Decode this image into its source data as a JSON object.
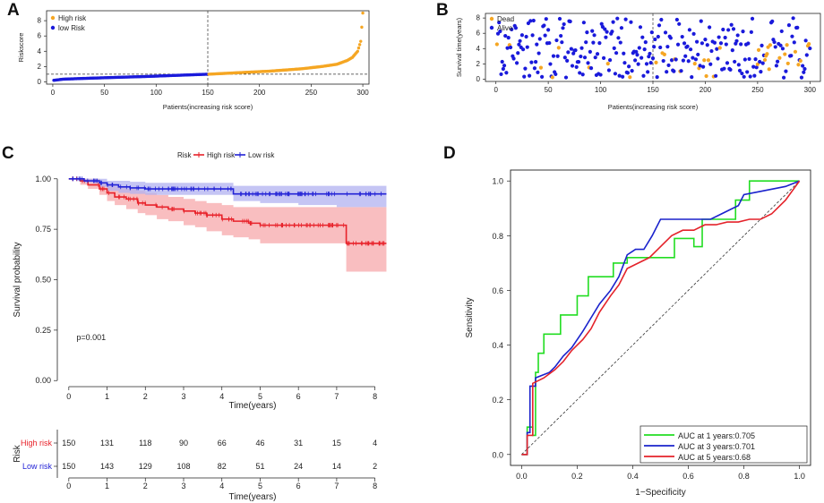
{
  "panels": {
    "A": "A",
    "B": "B",
    "C": "C",
    "D": "D"
  },
  "colors": {
    "high": "#f5a623",
    "low": "#1a1adb",
    "km_high": "#e8222a",
    "km_low": "#2323d6",
    "km_high_ci": "#f7a8ab",
    "km_low_ci": "#b2b2f0",
    "roc1": "#22dd22",
    "roc3": "#1a22cc",
    "roc5": "#e4222a"
  },
  "chart_data": [
    {
      "id": "A",
      "type": "scatter",
      "title": "",
      "xlabel": "Patients(increasing risk score)",
      "ylabel": "Riskscore",
      "xlim": [
        0,
        300
      ],
      "ylim": [
        0,
        9
      ],
      "xticks": [
        "0",
        "50",
        "100",
        "150",
        "200",
        "250",
        "300"
      ],
      "yticks": [
        "0",
        "2",
        "4",
        "6",
        "8"
      ],
      "legend": [
        "High risk",
        "low Risk"
      ],
      "cutoff_x": 150,
      "cutoff_y": 1.0,
      "low_curve": {
        "x": [
          1,
          10,
          30,
          60,
          90,
          120,
          150
        ],
        "y": [
          0.2,
          0.35,
          0.45,
          0.58,
          0.7,
          0.85,
          1.0
        ]
      },
      "high_curve": {
        "x": [
          151,
          180,
          210,
          240,
          260,
          275,
          285,
          290,
          295,
          298,
          300
        ],
        "y": [
          1.0,
          1.2,
          1.4,
          1.7,
          2.0,
          2.3,
          2.8,
          3.2,
          4.0,
          5.3,
          9.0
        ]
      }
    },
    {
      "id": "B",
      "type": "scatter",
      "xlabel": "Patients(increasing risk score)",
      "ylabel": "Survival time(years)",
      "xlim": [
        0,
        300
      ],
      "ylim": [
        0,
        8
      ],
      "xticks": [
        "0",
        "50",
        "100",
        "150",
        "200",
        "250",
        "300"
      ],
      "yticks": [
        "0",
        "2",
        "4",
        "6",
        "8"
      ],
      "legend": [
        "Dead",
        "Alive"
      ],
      "cutoff_x": 150,
      "note": "300 patients; alive (blue) dispersed 0-8 years; dead (orange) concentrated at lower survival times"
    },
    {
      "id": "C",
      "type": "line",
      "xlabel": "Time(years)",
      "ylabel": "Survival probability",
      "xlim": [
        0,
        8.3
      ],
      "ylim": [
        0,
        1.0
      ],
      "xticks": [
        "0",
        "1",
        "2",
        "3",
        "4",
        "5",
        "6",
        "7",
        "8"
      ],
      "yticks": [
        "0.00",
        "0.25",
        "0.50",
        "0.75",
        "1.00"
      ],
      "legend_title": "Risk",
      "legend": [
        "High risk",
        "Low risk"
      ],
      "pvalue": "p=0.001",
      "series": [
        {
          "name": "High risk",
          "t": [
            0,
            0.3,
            0.5,
            0.8,
            1.0,
            1.2,
            1.5,
            1.8,
            2.0,
            2.3,
            2.6,
            3.0,
            3.3,
            3.6,
            4.0,
            4.3,
            4.7,
            5.0,
            5.5,
            6.0,
            7.0,
            7.25,
            8.3
          ],
          "s": [
            1.0,
            0.99,
            0.97,
            0.95,
            0.93,
            0.91,
            0.9,
            0.88,
            0.87,
            0.86,
            0.85,
            0.84,
            0.83,
            0.82,
            0.8,
            0.79,
            0.78,
            0.77,
            0.77,
            0.77,
            0.77,
            0.68,
            0.68
          ],
          "lo": [
            1.0,
            0.97,
            0.95,
            0.92,
            0.89,
            0.87,
            0.85,
            0.83,
            0.82,
            0.8,
            0.79,
            0.77,
            0.76,
            0.74,
            0.72,
            0.71,
            0.7,
            0.68,
            0.68,
            0.68,
            0.68,
            0.54,
            0.54
          ],
          "hi": [
            1.0,
            1.0,
            1.0,
            0.98,
            0.97,
            0.96,
            0.95,
            0.94,
            0.93,
            0.92,
            0.91,
            0.9,
            0.89,
            0.88,
            0.87,
            0.86,
            0.86,
            0.86,
            0.86,
            0.86,
            0.86,
            0.86,
            0.86
          ]
        },
        {
          "name": "Low risk",
          "t": [
            0,
            0.4,
            0.8,
            1.0,
            1.3,
            1.6,
            2.0,
            3.0,
            4.0,
            4.3,
            5.0,
            6.0,
            7.0,
            8.3
          ],
          "s": [
            1.0,
            0.99,
            0.98,
            0.97,
            0.96,
            0.955,
            0.95,
            0.95,
            0.95,
            0.925,
            0.925,
            0.925,
            0.925,
            0.925
          ],
          "lo": [
            1.0,
            0.98,
            0.96,
            0.94,
            0.93,
            0.925,
            0.92,
            0.92,
            0.92,
            0.89,
            0.88,
            0.87,
            0.86,
            0.86
          ],
          "hi": [
            1.0,
            1.0,
            1.0,
            0.99,
            0.99,
            0.985,
            0.98,
            0.98,
            0.98,
            0.965,
            0.965,
            0.965,
            0.965,
            0.965
          ]
        }
      ]
    },
    {
      "id": "C-risk-table",
      "type": "table",
      "title": "Risk",
      "xlabel": "Time(years)",
      "times": [
        "0",
        "1",
        "2",
        "3",
        "4",
        "5",
        "6",
        "7",
        "8"
      ],
      "rows": [
        {
          "label": "High risk",
          "values": [
            "150",
            "131",
            "118",
            "90",
            "66",
            "46",
            "31",
            "15",
            "4"
          ]
        },
        {
          "label": "Low risk",
          "values": [
            "150",
            "143",
            "129",
            "108",
            "82",
            "51",
            "24",
            "14",
            "2"
          ]
        }
      ]
    },
    {
      "id": "D",
      "type": "line",
      "xlabel": "1−Specificity",
      "ylabel": "Sensitivity",
      "xlim": [
        0,
        1
      ],
      "ylim": [
        0,
        1
      ],
      "xticks": [
        "0.0",
        "0.2",
        "0.4",
        "0.6",
        "0.8",
        "1.0"
      ],
      "yticks": [
        "0.0",
        "0.2",
        "0.4",
        "0.6",
        "0.8",
        "1.0"
      ],
      "legend": [
        "AUC at 1 years:0.705",
        "AUC at 3 years:0.701",
        "AUC at 5 years:0.68"
      ],
      "series": [
        {
          "name": "AUC at 1 years:0.705",
          "x": [
            0,
            0.02,
            0.02,
            0.04,
            0.04,
            0.05,
            0.05,
            0.06,
            0.06,
            0.08,
            0.08,
            0.14,
            0.14,
            0.2,
            0.2,
            0.24,
            0.24,
            0.27,
            0.27,
            0.33,
            0.33,
            0.38,
            0.38,
            0.44,
            0.44,
            0.55,
            0.55,
            0.62,
            0.62,
            0.65,
            0.65,
            0.72,
            0.72,
            0.77,
            0.77,
            0.82,
            0.82,
            0.87,
            1.0
          ],
          "y": [
            0,
            0,
            0.1,
            0.1,
            0.07,
            0.07,
            0.3,
            0.3,
            0.37,
            0.37,
            0.44,
            0.44,
            0.51,
            0.51,
            0.58,
            0.58,
            0.65,
            0.65,
            0.65,
            0.65,
            0.7,
            0.7,
            0.72,
            0.72,
            0.72,
            0.72,
            0.79,
            0.79,
            0.76,
            0.76,
            0.86,
            0.86,
            0.86,
            0.86,
            0.93,
            0.93,
            1.0,
            1.0,
            1.0
          ]
        },
        {
          "name": "AUC at 3 years:0.701",
          "x": [
            0,
            0.02,
            0.02,
            0.03,
            0.03,
            0.05,
            0.05,
            0.1,
            0.12,
            0.15,
            0.18,
            0.22,
            0.25,
            0.28,
            0.32,
            0.35,
            0.38,
            0.41,
            0.44,
            0.47,
            0.5,
            0.53,
            0.56,
            0.6,
            0.64,
            0.68,
            0.72,
            0.76,
            0.78,
            0.8,
            0.85,
            0.95,
            1.0
          ],
          "y": [
            0,
            0,
            0.08,
            0.08,
            0.25,
            0.25,
            0.28,
            0.3,
            0.32,
            0.36,
            0.39,
            0.45,
            0.5,
            0.55,
            0.6,
            0.65,
            0.73,
            0.75,
            0.75,
            0.8,
            0.86,
            0.86,
            0.86,
            0.86,
            0.86,
            0.86,
            0.88,
            0.9,
            0.91,
            0.95,
            0.96,
            0.98,
            1.0
          ]
        },
        {
          "name": "AUC at 5 years:0.68",
          "x": [
            0,
            0.02,
            0.02,
            0.04,
            0.04,
            0.08,
            0.12,
            0.15,
            0.18,
            0.22,
            0.25,
            0.28,
            0.32,
            0.35,
            0.38,
            0.42,
            0.46,
            0.5,
            0.54,
            0.58,
            0.62,
            0.66,
            0.7,
            0.74,
            0.78,
            0.82,
            0.86,
            0.9,
            0.95,
            1.0
          ],
          "y": [
            0,
            0,
            0.07,
            0.07,
            0.26,
            0.28,
            0.31,
            0.34,
            0.38,
            0.42,
            0.46,
            0.52,
            0.58,
            0.62,
            0.68,
            0.7,
            0.72,
            0.76,
            0.8,
            0.82,
            0.82,
            0.84,
            0.84,
            0.85,
            0.85,
            0.86,
            0.86,
            0.88,
            0.93,
            1.0
          ]
        }
      ]
    }
  ]
}
